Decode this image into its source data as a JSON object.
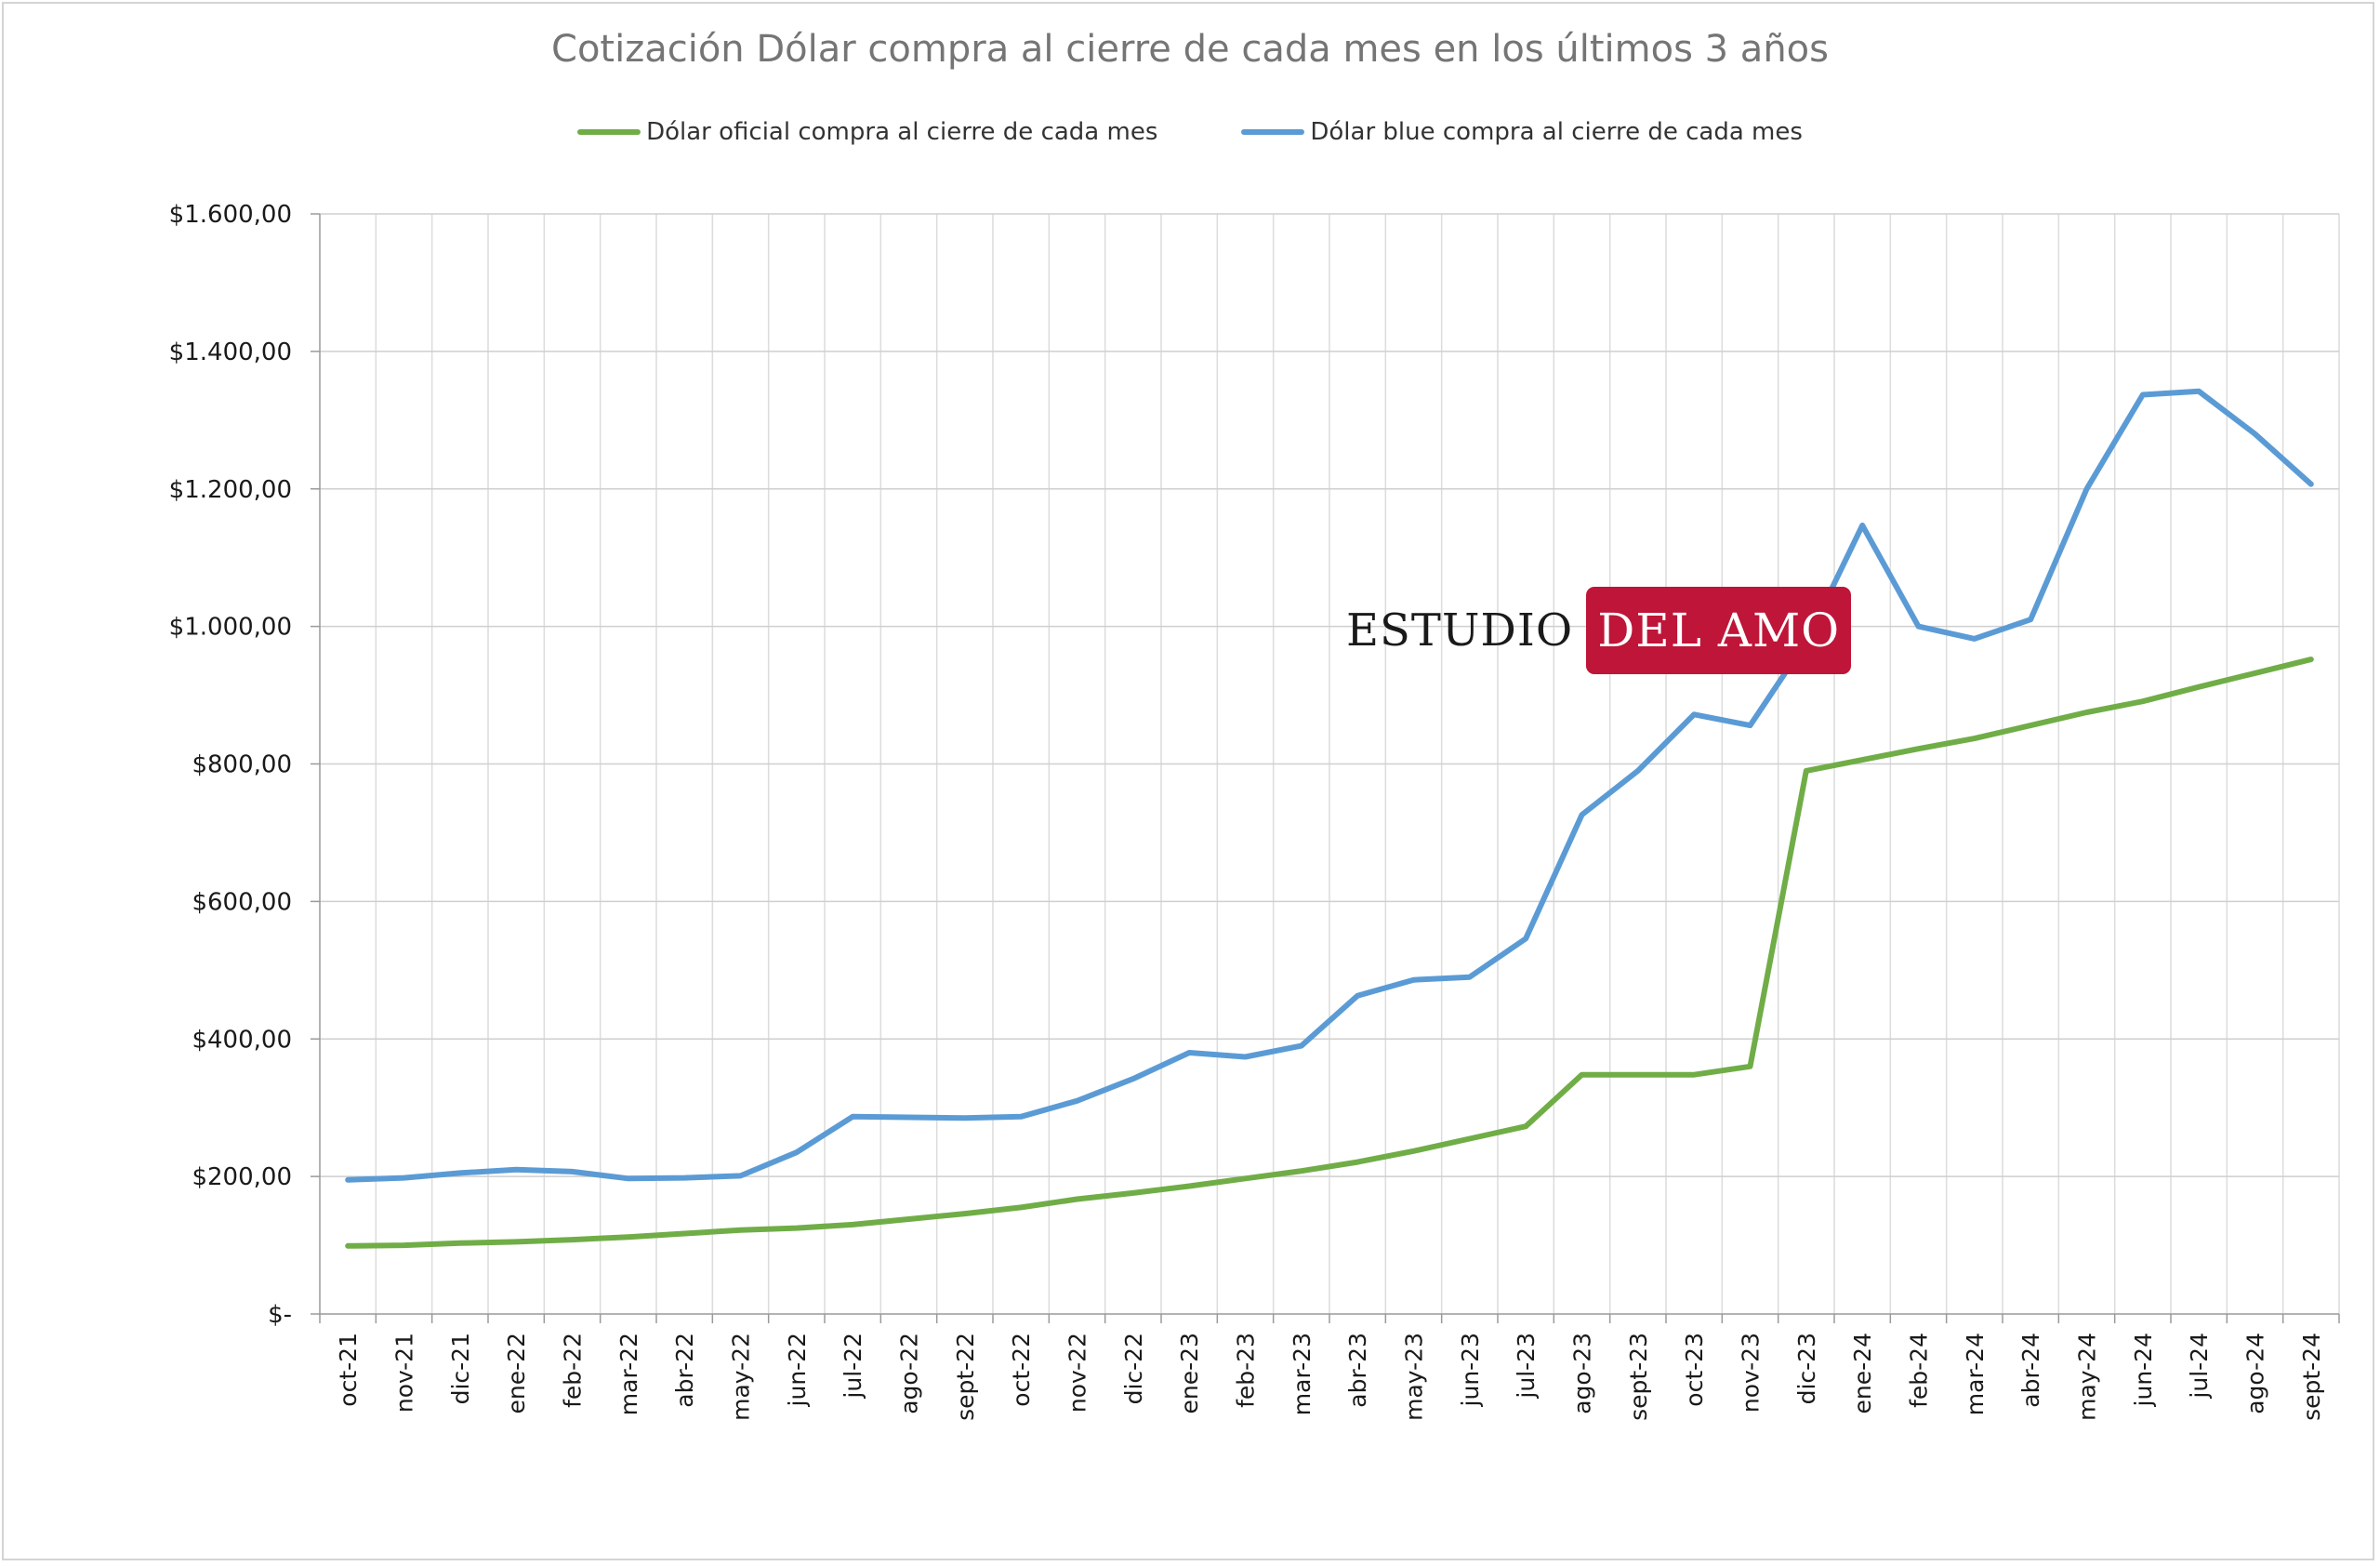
{
  "chart_data": {
    "type": "line",
    "title": "Cotización Dólar compra al cierre de cada mes en los últimos 3 años",
    "xlabel": "",
    "ylabel": "",
    "ylim": [
      0,
      1600
    ],
    "y_ticks": [
      "$1.600,00",
      "$1.400,00",
      "$1.200,00",
      "$1.000,00",
      "$800,00",
      "$600,00",
      "$400,00",
      "$200,00",
      "$-"
    ],
    "y_tick_values": [
      1600,
      1400,
      1200,
      1000,
      800,
      600,
      400,
      200,
      0
    ],
    "grid": true,
    "legend_position": "top",
    "categories": [
      "oct-21",
      "nov-21",
      "dic-21",
      "ene-22",
      "feb-22",
      "mar-22",
      "abr-22",
      "may-22",
      "jun-22",
      "jul-22",
      "ago-22",
      "sept-22",
      "oct-22",
      "nov-22",
      "dic-22",
      "ene-23",
      "feb-23",
      "mar-23",
      "abr-23",
      "may-23",
      "jun-23",
      "jul-23",
      "ago-23",
      "sept-23",
      "oct-23",
      "nov-23",
      "dic-23",
      "ene-24",
      "feb-24",
      "mar-24",
      "abr-24",
      "may-24",
      "jun-24",
      "jul-24",
      "ago-24",
      "sept-24"
    ],
    "series": [
      {
        "name": "Dólar oficial compra al cierre de cada mes",
        "color": "#70ad47",
        "values": [
          99,
          100,
          103,
          105,
          108,
          112,
          117,
          122,
          125,
          130,
          138,
          146,
          155,
          167,
          176,
          186,
          197,
          208,
          221,
          237,
          255,
          273,
          348,
          348,
          348,
          360,
          790,
          806,
          822,
          837,
          856,
          875,
          891,
          912,
          932,
          952
        ]
      },
      {
        "name": "Dólar blue compra al cierre de cada mes",
        "color": "#5b9bd5",
        "values": [
          195,
          198,
          205,
          210,
          207,
          197,
          198,
          201,
          235,
          287,
          286,
          285,
          287,
          310,
          342,
          380,
          374,
          390,
          463,
          486,
          490,
          546,
          726,
          790,
          872,
          856,
          978,
          1147,
          1000,
          982,
          1010,
          1200,
          1337,
          1342,
          1280,
          1207
        ]
      }
    ]
  },
  "logo": {
    "left_text": "ESTUDIO",
    "right_text": "DEL AMO",
    "color": "#be1538"
  }
}
